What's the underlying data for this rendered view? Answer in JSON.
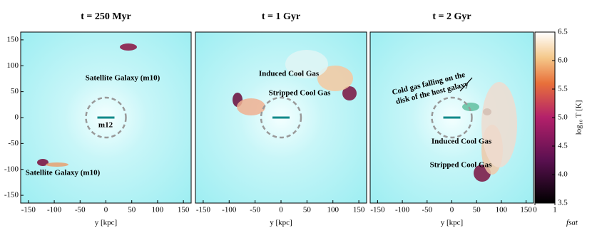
{
  "chart_data": [
    {
      "type": "image",
      "title": "t = 250 Myr",
      "xlabel": "y [kpc]",
      "xlim": [
        -165,
        165
      ],
      "xticks": [
        -150,
        -100,
        -50,
        0,
        50,
        100,
        150
      ],
      "ylim": [
        -165,
        165
      ],
      "yticks": [
        -150,
        -100,
        -50,
        0,
        50,
        100,
        150
      ],
      "annotations": [
        "Satellite Galaxy (m10)",
        "m12",
        "Satellite Galaxy (m10)"
      ]
    },
    {
      "type": "image",
      "title": "t = 1 Gyr",
      "xlabel": "y [kpc]",
      "xlim": [
        -165,
        165
      ],
      "xticks": [
        -150,
        -100,
        -50,
        0,
        50,
        100,
        150
      ],
      "annotations": [
        "Induced Cool Gas",
        "Stripped Cool Gas"
      ]
    },
    {
      "type": "image",
      "title": "t = 2 Gyr",
      "xlabel": "y [kpc]",
      "xlim": [
        -165,
        165
      ],
      "xticks": [
        -150,
        -100,
        -50,
        0,
        50,
        100,
        150
      ],
      "annotations": [
        "Cold gas falling on the",
        "disk of the host galaxy",
        "Induced Cool Gas",
        "Stripped Cool Gas"
      ]
    },
    {
      "type": "colorbar",
      "ylabel": "log₁₀ T [K]",
      "xlabel": "fsat",
      "ylim": [
        3.5,
        6.5
      ],
      "yticks": [
        3.5,
        {
          "value": 4,
          "label": "4.0"
        },
        4.5,
        {
          "value": 5,
          "label": "5.0"
        },
        5.5,
        {
          "value": 6,
          "label": "6.0"
        },
        6.5
      ],
      "xlim": [
        0,
        1
      ],
      "xticks": [
        0,
        1
      ]
    }
  ]
}
